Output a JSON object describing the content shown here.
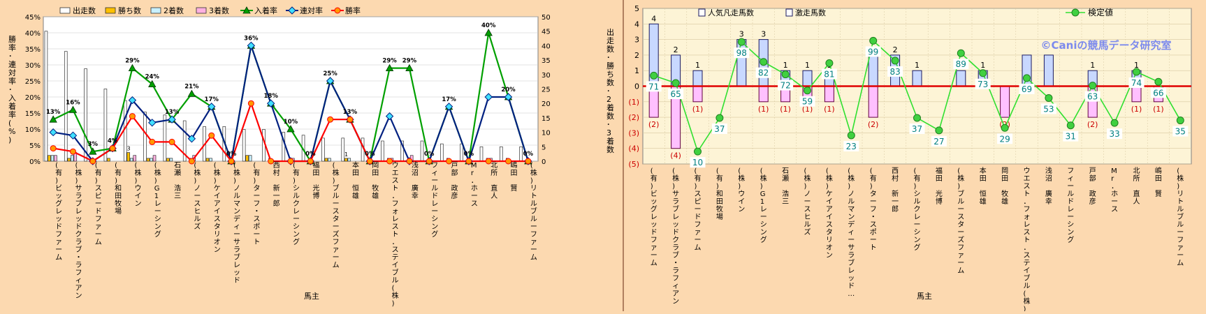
{
  "chart_data": [
    {
      "type": "bar",
      "categories": [
        "(有)ビッグレッドファーム",
        "(株)サラブレッドクラブ・ラフィアン",
        "(有)スピードファーム",
        "(有)和田牧場",
        "(株)ウイン",
        "(株)G1レーシング",
        "石瀬 浩三",
        "(株)ノースヒルズ",
        "(株)ケイアイスタリオン",
        "(株)ノルマンディーサラブレッド",
        "(有)ターフ・スポート",
        "西村 新一郎",
        "(有)シルクレーシング",
        "福田 光博",
        "(株)ブルースターズファーム",
        "本田 恒雄",
        "岡田 牧雄",
        "ウエスト．フォレスト．ステイブル(株)",
        "浅沼 廣幸",
        "フィールドレーシング",
        "戸部 政彦",
        "Mr．ホース",
        "北所 直人",
        "嶋田 賢",
        "(株)リトルブルーファーム"
      ],
      "series": [
        {
          "name": "出走数",
          "kind": "bar",
          "axis": "right",
          "color": "#ffffff",
          "values": [
            45,
            38,
            32,
            25,
            21,
            17,
            16,
            14,
            12,
            12,
            11,
            11,
            10,
            9,
            8,
            8,
            8,
            7,
            7,
            7,
            6,
            6,
            5,
            5,
            5
          ]
        },
        {
          "name": "勝ち数",
          "kind": "bar",
          "axis": "right",
          "color": "#ffc000",
          "values": [
            2,
            1,
            0,
            1,
            3,
            1,
            1,
            0,
            1,
            0,
            2,
            0,
            0,
            0,
            1,
            1,
            0,
            0,
            0,
            0,
            0,
            0,
            0,
            0,
            0
          ]
        },
        {
          "name": "2着数",
          "kind": "bar",
          "axis": "right",
          "color": "#c8f0ff",
          "values": [
            2,
            2,
            1,
            0,
            1,
            1,
            1,
            1,
            1,
            0,
            2,
            1,
            0,
            0,
            1,
            1,
            0,
            1,
            0,
            0,
            1,
            0,
            1,
            1,
            0
          ]
        },
        {
          "name": "3着数",
          "kind": "bar",
          "axis": "right",
          "color": "#ffb0e0",
          "values": [
            2,
            3,
            0,
            0,
            2,
            2,
            0,
            2,
            0,
            0,
            0,
            0,
            1,
            0,
            0,
            0,
            0,
            1,
            2,
            0,
            0,
            0,
            1,
            0,
            0
          ]
        },
        {
          "name": "入着率",
          "kind": "line",
          "axis": "left",
          "color": "#00a000",
          "marker": "triangle",
          "values": [
            13,
            16,
            3,
            4,
            29,
            24,
            13,
            21,
            17,
            0,
            36,
            18,
            10,
            0,
            25,
            13,
            0,
            29,
            29,
            0,
            17,
            0,
            40,
            20,
            0
          ]
        },
        {
          "name": "連対率",
          "kind": "line",
          "axis": "left",
          "color": "#002080",
          "marker": "diamond",
          "values": [
            9,
            8,
            0,
            4,
            19,
            12,
            13,
            7,
            17,
            0,
            36,
            18,
            0,
            0,
            25,
            13,
            0,
            14,
            0,
            0,
            17,
            0,
            20,
            20,
            0
          ]
        },
        {
          "name": "勝率",
          "kind": "line",
          "axis": "left",
          "color": "#ff0000",
          "marker": "circle",
          "values": [
            4,
            3,
            0,
            4,
            14,
            6,
            6,
            0,
            8,
            0,
            18,
            0,
            0,
            0,
            13,
            13,
            0,
            0,
            0,
            0,
            0,
            0,
            0,
            0,
            0
          ]
        }
      ],
      "point_labels": [
        "13%",
        "16%",
        "3%",
        "4%",
        "29%",
        "24%",
        "13%",
        "21%",
        "17%",
        "0%",
        "36%",
        "18%",
        "10%",
        "0%",
        "25%",
        "13%",
        "0%",
        "29%",
        "29%",
        "0%",
        "17%",
        "0%",
        "40%",
        "20%",
        "0%"
      ],
      "bar_labels": [
        "",
        "",
        "",
        "",
        "3",
        "",
        "",
        "",
        "",
        "",
        "",
        "",
        "",
        "",
        "",
        "1",
        "",
        "",
        "",
        "",
        "",
        "",
        "",
        "",
        ""
      ],
      "xlabel": "馬主",
      "ylabel_left": "勝率･連対率･入着率(%)",
      "ylabel_right": "出走数･勝ち数･2着数･3着数",
      "ylim_left": [
        0,
        45
      ],
      "yticks_left": [
        "0%",
        "5%",
        "10%",
        "15%",
        "20%",
        "25%",
        "30%",
        "35%",
        "40%",
        "45%"
      ],
      "ylim_right": [
        0,
        50
      ],
      "yticks_right": [
        "0",
        "5",
        "10",
        "15",
        "20",
        "25",
        "30",
        "35",
        "40",
        "45",
        "50"
      ],
      "grid": true,
      "legend_position": "top"
    },
    {
      "type": "bar",
      "categories": [
        "(有)ビッグレッドファーム",
        "(株)サラブレッドクラブ・ラフィアン",
        "(有)スピードファーム",
        "(有)和田牧場",
        "(株)ウイン",
        "(株)G1レーシング",
        "石瀬 浩三",
        "(株)ノースヒルズ",
        "(株)ケイアイスタリオン",
        "(株)ノルマンディーサラブレッド…",
        "(有)ターフ・スポート",
        "西村 新一郎",
        "(有)シルクレーシング",
        "福田 光博",
        "(株)ブルースターズファーム",
        "本田 恒雄",
        "岡田 牧雄",
        "ウエスト．フォレスト．ステイブル(株)",
        "浅沼 廣幸",
        "フィールドレーシング",
        "戸部 政彦",
        "Mr．ホース",
        "北所 直人",
        "嶋田 賢",
        "(株)リトルブルーファーム"
      ],
      "series": [
        {
          "name": "人気凡走馬数",
          "kind": "bar",
          "color": "#ffc0ff",
          "values": [
            -2,
            -4,
            -1,
            0,
            0,
            -1,
            -1,
            -1,
            -1,
            0,
            -2,
            0,
            0,
            0,
            0,
            0,
            -2,
            0,
            0,
            0,
            -2,
            0,
            -1,
            -1,
            0
          ]
        },
        {
          "name": "激走馬数",
          "kind": "bar",
          "color": "#c8d8ff",
          "values": [
            4,
            2,
            1,
            0,
            3,
            3,
            1,
            1,
            1,
            0,
            2,
            2,
            1,
            0,
            1,
            1,
            0,
            2,
            2,
            0,
            1,
            0,
            1,
            0,
            0
          ]
        },
        {
          "name": "検定値",
          "kind": "line",
          "axis": "secondary",
          "color": "#30e030",
          "marker": "circle",
          "values": [
            71,
            65,
            10,
            37,
            98,
            82,
            72,
            59,
            81,
            23,
            99,
            83,
            37,
            27,
            89,
            73,
            29,
            69,
            53,
            31,
            63,
            33,
            74,
            66,
            35
          ]
        }
      ],
      "top_labels": [
        "4",
        "2",
        "1",
        "",
        "3",
        "3",
        "1",
        "1",
        "1",
        "",
        "2",
        "2",
        "1",
        "",
        "1",
        "1",
        "",
        "",
        "",
        "",
        "1",
        "",
        "1",
        "",
        ""
      ],
      "bottom_labels": [
        "(2)",
        "(4)",
        "(1)",
        "",
        "",
        "(1)",
        "(1)",
        "(1)",
        "(1)",
        "",
        "(2)",
        "",
        "",
        "",
        "",
        "",
        "(2)",
        "",
        "",
        "",
        "(2)",
        "",
        "(1)",
        "(1)",
        ""
      ],
      "xlabel": "馬主",
      "ylim": [
        -5,
        5
      ],
      "yticks": [
        "(5)",
        "(4)",
        "(3)",
        "(2)",
        "(1)",
        "0",
        "1",
        "2",
        "3",
        "4",
        "5"
      ],
      "secondary_ylim": [
        0,
        125
      ],
      "grid": true,
      "legend_position": "top",
      "watermark": "©Caniの競馬データ研究室"
    }
  ]
}
